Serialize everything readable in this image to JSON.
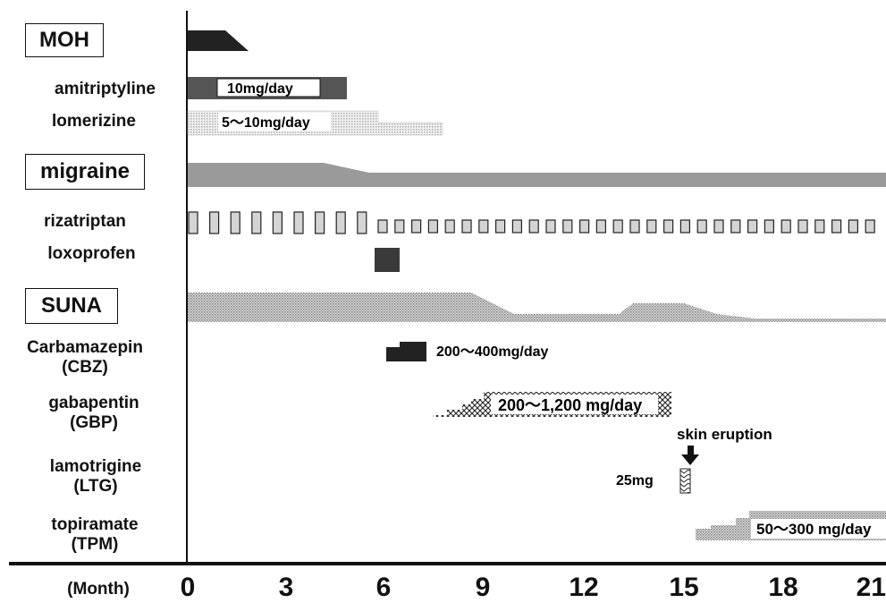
{
  "section_labels": {
    "moh": "MOH",
    "migraine": "migraine",
    "suna": "SUNA"
  },
  "drug_labels": {
    "amitriptyline": "amitriptyline",
    "lomerizine": "lomerizine",
    "rizatriptan": "rizatriptan",
    "loxoprofen": "loxoprofen",
    "cbz_name": "Carbamazepin",
    "cbz_abbr": "(CBZ)",
    "gbp_name": "gabapentin",
    "gbp_abbr": "(GBP)",
    "ltg_name": "lamotrigine",
    "ltg_abbr": "(LTG)",
    "tpm_name": "topiramate",
    "tpm_abbr": "(TPM)"
  },
  "dose_labels": {
    "amitriptyline": "10mg/day",
    "lomerizine": "5～10mg/day",
    "carbamazepin": "200～400mg/day",
    "gabapentin": "200～1,200 mg/day",
    "lamotrigine": "25mg",
    "topiramate": "50～300 mg/day"
  },
  "annotation": "skin eruption",
  "axis": {
    "unit_label": "(Month)",
    "ticks": [
      "0",
      "3",
      "6",
      "9",
      "12",
      "15",
      "18",
      "21"
    ]
  },
  "colors": {
    "dark": "#222222",
    "bar_gray": "#555555",
    "band_gray": "#9a9a9a",
    "light_dot": "#bcbcbc",
    "pill_fill": "#d4d4d4"
  }
}
